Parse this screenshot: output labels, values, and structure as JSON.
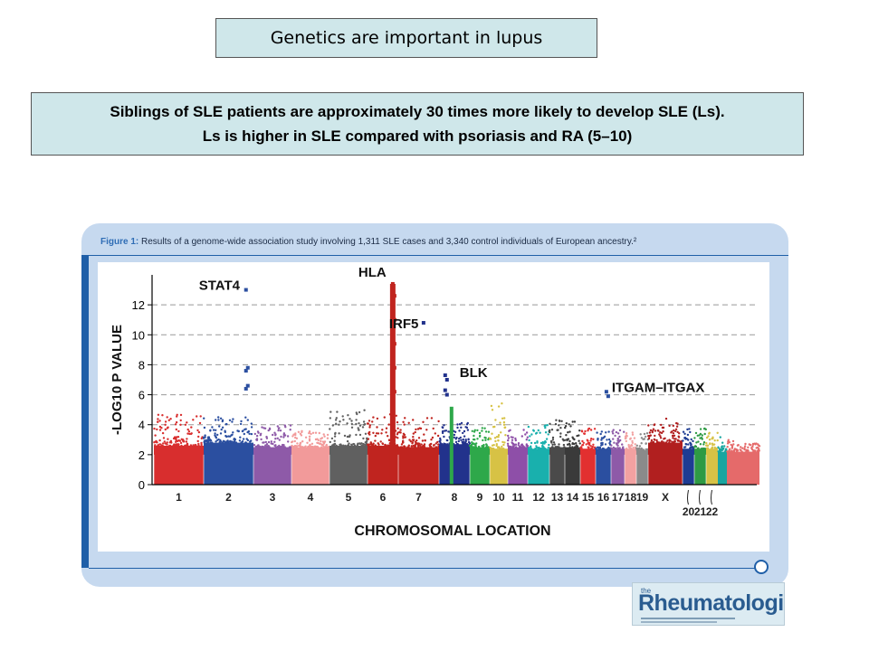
{
  "slide": {
    "title": "Genetics are important in lupus",
    "subtitle_line1": "Siblings of SLE patients are approximately 30 times more likely to develop SLE (Ls).",
    "subtitle_line2": "Ls  is higher in SLE compared with psoriasis and RA (5–10)"
  },
  "figure": {
    "label": "Figure 1:",
    "caption": "Results of a genome-wide association study involving 1,311 SLE cases and 3,340 control individuals of European ancestry.²"
  },
  "logo": {
    "small": "the",
    "name": "Rheumatologist"
  },
  "colors": {
    "slide_box_bg": "#cfe7ea",
    "panel_bg": "#c6d9ef",
    "accent_blue": "#1f5fa8",
    "threshold_line": "#999999"
  },
  "chart_data": {
    "type": "scatter",
    "subtype": "manhattan",
    "xlabel": "CHROMOSOMAL LOCATION",
    "ylabel": "-LOG10 P VALUE",
    "ylim": [
      0,
      14
    ],
    "yticks": [
      0,
      2,
      4,
      6,
      8,
      10,
      12
    ],
    "grid": "dashed horizontal lines at y = 4 to 12",
    "chromosomes": [
      {
        "name": "1",
        "color": "#d82e2e",
        "base": 2.6,
        "top": 4.7
      },
      {
        "name": "2",
        "color": "#2b4fa0",
        "base": 2.8,
        "top": 4.5
      },
      {
        "name": "3",
        "color": "#8e5aa8",
        "base": 2.5,
        "top": 4.0
      },
      {
        "name": "4",
        "color": "#f29a9a",
        "base": 2.5,
        "top": 3.6
      },
      {
        "name": "5",
        "color": "#606060",
        "base": 2.6,
        "top": 5.2
      },
      {
        "name": "6",
        "color": "#c0241f",
        "base": 2.6,
        "top": 4.8
      },
      {
        "name": "7",
        "color": "#c0241f",
        "base": 2.5,
        "top": 4.5
      },
      {
        "name": "8",
        "color": "#22328c",
        "base": 2.7,
        "top": 4.2
      },
      {
        "name": "9",
        "color": "#2ea84a",
        "base": 2.5,
        "top": 3.8
      },
      {
        "name": "10",
        "color": "#d7c245",
        "base": 2.4,
        "top": 5.5
      },
      {
        "name": "11",
        "color": "#8e4fa8",
        "base": 2.5,
        "top": 3.9
      },
      {
        "name": "12",
        "color": "#19b0ad",
        "base": 2.4,
        "top": 4.0
      },
      {
        "name": "13",
        "color": "#4a4a4a",
        "base": 2.5,
        "top": 4.4
      },
      {
        "name": "14",
        "color": "#3a3a3a",
        "base": 2.5,
        "top": 4.2
      },
      {
        "name": "15",
        "color": "#e23030",
        "base": 2.4,
        "top": 3.8
      },
      {
        "name": "16",
        "color": "#2b4fa0",
        "base": 2.4,
        "top": 3.6
      },
      {
        "name": "17",
        "color": "#8e5aa8",
        "base": 2.4,
        "top": 3.8
      },
      {
        "name": "18",
        "color": "#f2a1a1",
        "base": 2.4,
        "top": 3.5
      },
      {
        "name": "19",
        "color": "#8a8a8a",
        "base": 2.3,
        "top": 3.5
      },
      {
        "name": "X",
        "color": "#b11f1f",
        "base": 2.8,
        "top": 4.4
      },
      {
        "name": "20",
        "color": "#1e3c93",
        "base": 2.4,
        "top": 3.8
      },
      {
        "name": "21",
        "color": "#2e9a44",
        "base": 2.4,
        "top": 3.8
      },
      {
        "name": "22",
        "color": "#d7c245",
        "base": 2.4,
        "top": 3.7
      }
    ],
    "extra_strips": [
      {
        "color": "#19a5a0",
        "base": 2.2,
        "top": 3.2
      },
      {
        "color": "#e56a6a",
        "base": 2.2,
        "top": 3.0
      }
    ],
    "peaks": [
      {
        "label": "STAT4",
        "chromosome": "2",
        "values": [
          13.0,
          7.8,
          7.6,
          6.6,
          6.4
        ],
        "color": "#2b4fa0"
      },
      {
        "label": "HLA",
        "chromosome": "6",
        "values": [
          13.4,
          12.6,
          11.8,
          11.0,
          10.2,
          9.4,
          8.6,
          7.8,
          7.0,
          6.2,
          5.4
        ],
        "color": "#c0241f"
      },
      {
        "label": "IRF5",
        "chromosome": "7",
        "values": [
          10.8
        ],
        "color": "#22328c"
      },
      {
        "label": "BLK",
        "chromosome": "8",
        "values": [
          7.3,
          7.0,
          6.3,
          6.0
        ],
        "color": "#22328c"
      },
      {
        "label": "ITGAM–ITGAX",
        "chromosome": "16",
        "values": [
          6.2,
          5.9
        ],
        "color": "#2b4fa0"
      }
    ]
  }
}
